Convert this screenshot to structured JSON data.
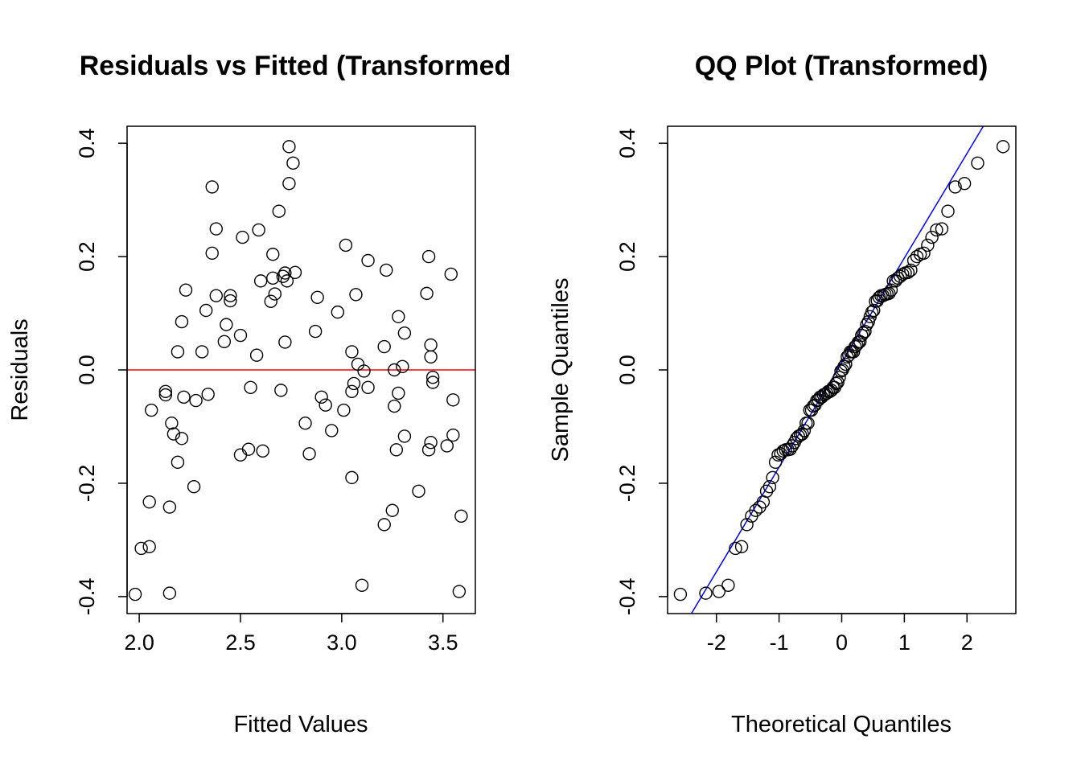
{
  "chart_data": [
    {
      "type": "scatter",
      "title": "Residuals vs Fitted (Transformed",
      "xlabel": "Fitted Values",
      "ylabel": "Residuals",
      "xlim": [
        1.94,
        3.66
      ],
      "ylim": [
        -0.43,
        0.43
      ],
      "xticks": [
        2.0,
        2.5,
        3.0,
        3.5
      ],
      "xtick_labels": [
        "2.0",
        "2.5",
        "3.0",
        "3.5"
      ],
      "yticks": [
        -0.4,
        -0.2,
        0.0,
        0.2,
        0.4
      ],
      "ytick_labels": [
        "-0.4",
        "-0.2",
        "0.0",
        "0.2",
        "0.4"
      ],
      "grid": false,
      "reference_line": {
        "type": "horizontal",
        "y": 0.0,
        "color": "#ff0000"
      },
      "points": [
        [
          1.98,
          -0.396
        ],
        [
          2.01,
          -0.315
        ],
        [
          2.05,
          -0.312
        ],
        [
          2.05,
          -0.233
        ],
        [
          2.06,
          -0.071
        ],
        [
          2.13,
          -0.038
        ],
        [
          2.13,
          -0.044
        ],
        [
          2.15,
          -0.242
        ],
        [
          2.15,
          -0.394
        ],
        [
          2.16,
          -0.094
        ],
        [
          2.17,
          -0.113
        ],
        [
          2.19,
          -0.163
        ],
        [
          2.19,
          0.032
        ],
        [
          2.21,
          -0.121
        ],
        [
          2.21,
          0.085
        ],
        [
          2.22,
          -0.048
        ],
        [
          2.23,
          0.141
        ],
        [
          2.27,
          -0.206
        ],
        [
          2.28,
          -0.054
        ],
        [
          2.31,
          0.032
        ],
        [
          2.33,
          0.105
        ],
        [
          2.34,
          -0.043
        ],
        [
          2.36,
          0.323
        ],
        [
          2.36,
          0.206
        ],
        [
          2.38,
          0.249
        ],
        [
          2.38,
          0.131
        ],
        [
          2.42,
          0.05
        ],
        [
          2.43,
          0.08
        ],
        [
          2.45,
          0.131
        ],
        [
          2.45,
          0.122
        ],
        [
          2.5,
          -0.15
        ],
        [
          2.5,
          0.061
        ],
        [
          2.51,
          0.234
        ],
        [
          2.54,
          -0.14
        ],
        [
          2.55,
          -0.031
        ],
        [
          2.58,
          0.026
        ],
        [
          2.59,
          0.247
        ],
        [
          2.6,
          0.157
        ],
        [
          2.61,
          -0.143
        ],
        [
          2.65,
          0.121
        ],
        [
          2.66,
          0.204
        ],
        [
          2.66,
          0.162
        ],
        [
          2.67,
          0.134
        ],
        [
          2.69,
          0.28
        ],
        [
          2.7,
          -0.036
        ],
        [
          2.71,
          0.165
        ],
        [
          2.72,
          0.171
        ],
        [
          2.72,
          0.049
        ],
        [
          2.73,
          0.157
        ],
        [
          2.74,
          0.329
        ],
        [
          2.74,
          0.394
        ],
        [
          2.76,
          0.365
        ],
        [
          2.77,
          0.172
        ],
        [
          2.82,
          -0.094
        ],
        [
          2.84,
          -0.148
        ],
        [
          2.87,
          0.068
        ],
        [
          2.88,
          0.128
        ],
        [
          2.9,
          -0.048
        ],
        [
          2.92,
          -0.062
        ],
        [
          2.95,
          -0.107
        ],
        [
          2.98,
          0.102
        ],
        [
          3.01,
          -0.071
        ],
        [
          3.02,
          0.22
        ],
        [
          3.05,
          0.032
        ],
        [
          3.05,
          -0.038
        ],
        [
          3.05,
          -0.19
        ],
        [
          3.06,
          -0.024
        ],
        [
          3.07,
          0.133
        ],
        [
          3.08,
          0.01
        ],
        [
          3.1,
          -0.38
        ],
        [
          3.11,
          -0.002
        ],
        [
          3.13,
          -0.031
        ],
        [
          3.13,
          0.193
        ],
        [
          3.21,
          -0.273
        ],
        [
          3.21,
          0.041
        ],
        [
          3.22,
          0.176
        ],
        [
          3.25,
          -0.248
        ],
        [
          3.26,
          0.0
        ],
        [
          3.26,
          -0.064
        ],
        [
          3.27,
          -0.141
        ],
        [
          3.28,
          0.094
        ],
        [
          3.28,
          -0.041
        ],
        [
          3.3,
          0.006
        ],
        [
          3.31,
          0.065
        ],
        [
          3.31,
          -0.117
        ],
        [
          3.38,
          -0.214
        ],
        [
          3.42,
          0.135
        ],
        [
          3.43,
          0.2
        ],
        [
          3.43,
          -0.141
        ],
        [
          3.44,
          0.044
        ],
        [
          3.44,
          0.023
        ],
        [
          3.44,
          -0.128
        ],
        [
          3.45,
          -0.022
        ],
        [
          3.45,
          -0.013
        ],
        [
          3.52,
          -0.134
        ],
        [
          3.54,
          0.169
        ],
        [
          3.55,
          -0.053
        ],
        [
          3.55,
          -0.115
        ],
        [
          3.58,
          -0.391
        ],
        [
          3.59,
          -0.258
        ]
      ]
    },
    {
      "type": "scatter",
      "title": "QQ Plot (Transformed)",
      "xlabel": "Theoretical Quantiles",
      "ylabel": "Sample Quantiles",
      "xlim": [
        -2.78,
        2.78
      ],
      "ylim": [
        -0.43,
        0.43
      ],
      "xticks": [
        -2,
        -1,
        0,
        1,
        2
      ],
      "xtick_labels": [
        "-2",
        "-1",
        "0",
        "1",
        "2"
      ],
      "yticks": [
        -0.4,
        -0.2,
        0.0,
        0.2,
        0.4
      ],
      "ytick_labels": [
        "-0.4",
        "-0.2",
        "0.0",
        "0.2",
        "0.4"
      ],
      "grid": false,
      "reference_line": {
        "type": "qqline",
        "points": [
          [
            -2.4,
            -0.43
          ],
          [
            2.26,
            0.43
          ]
        ],
        "color": "#0000ff"
      },
      "n": 100
    }
  ]
}
